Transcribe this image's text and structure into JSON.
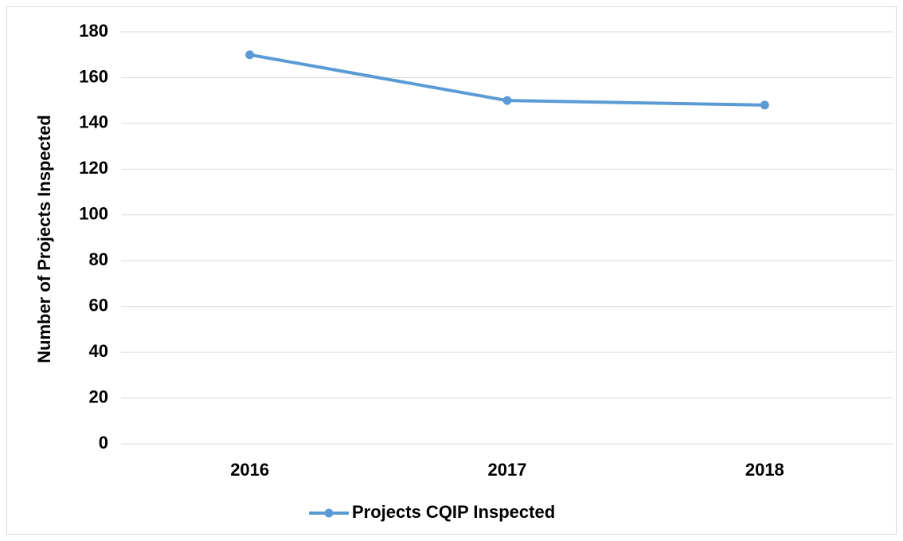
{
  "chart_data": {
    "type": "line",
    "y_label": "Number of Projects Inspected",
    "categories": [
      "2016",
      "2017",
      "2018"
    ],
    "series": [
      {
        "name": "Projects CQIP Inspected",
        "color": "#5b9bd5",
        "values": [
          170,
          150,
          148
        ]
      }
    ],
    "ylim": [
      0,
      180
    ],
    "yticks": [
      0,
      20,
      40,
      60,
      80,
      100,
      120,
      140,
      160,
      180
    ],
    "grid": true,
    "legend": "bottom"
  }
}
